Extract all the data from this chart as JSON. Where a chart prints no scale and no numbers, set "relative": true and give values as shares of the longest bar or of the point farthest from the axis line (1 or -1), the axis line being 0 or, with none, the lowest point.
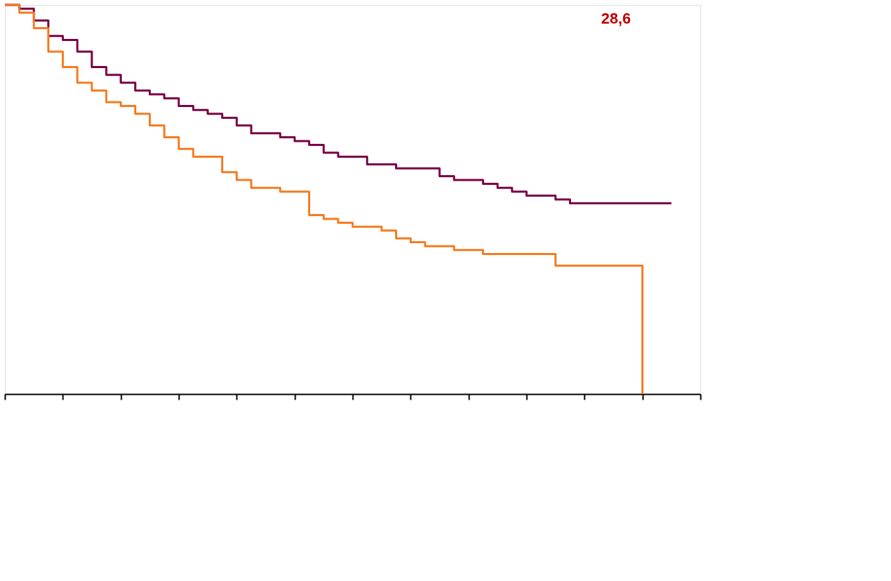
{
  "chart_data": {
    "type": "step",
    "relative": true,
    "categories": [
      null,
      null,
      null,
      null,
      null,
      null,
      null,
      null,
      null,
      null,
      null,
      null,
      null,
      null,
      null,
      null,
      null,
      null,
      null,
      null,
      null,
      null,
      null,
      null,
      null,
      null,
      null,
      null,
      null,
      null,
      null,
      null,
      null,
      null,
      null,
      null,
      null,
      null,
      null,
      null,
      null,
      null,
      null,
      null,
      null,
      null,
      null,
      null
    ],
    "series": [
      {
        "color": "#7b0046",
        "values": [
          1.0,
          0.99,
          0.96,
          0.92,
          0.91,
          0.88,
          0.84,
          0.82,
          0.8,
          0.78,
          0.77,
          0.76,
          0.74,
          0.73,
          0.72,
          0.71,
          0.69,
          0.67,
          0.67,
          0.66,
          0.65,
          0.64,
          0.62,
          0.61,
          0.61,
          0.59,
          0.59,
          0.58,
          0.58,
          0.58,
          0.56,
          0.55,
          0.55,
          0.54,
          0.53,
          0.52,
          0.51,
          0.51,
          0.5,
          0.49,
          0.49,
          0.49,
          0.49,
          0.49,
          0.49,
          0.49,
          0.49,
          null
        ]
      },
      {
        "color": "#f47c20",
        "values": [
          1.0,
          0.98,
          0.94,
          0.88,
          0.84,
          0.8,
          0.78,
          0.75,
          0.74,
          0.72,
          0.69,
          0.66,
          0.63,
          0.61,
          0.61,
          0.57,
          0.55,
          0.53,
          0.53,
          0.52,
          0.52,
          0.46,
          0.45,
          0.44,
          0.43,
          0.43,
          0.42,
          0.4,
          0.39,
          0.38,
          0.38,
          0.37,
          0.37,
          0.36,
          0.36,
          0.36,
          0.36,
          0.36,
          0.33,
          0.33,
          0.33,
          0.33,
          0.33,
          0.33,
          0.0,
          null,
          null,
          null
        ]
      }
    ],
    "annotations": [
      "28,6"
    ],
    "grid": false
  }
}
